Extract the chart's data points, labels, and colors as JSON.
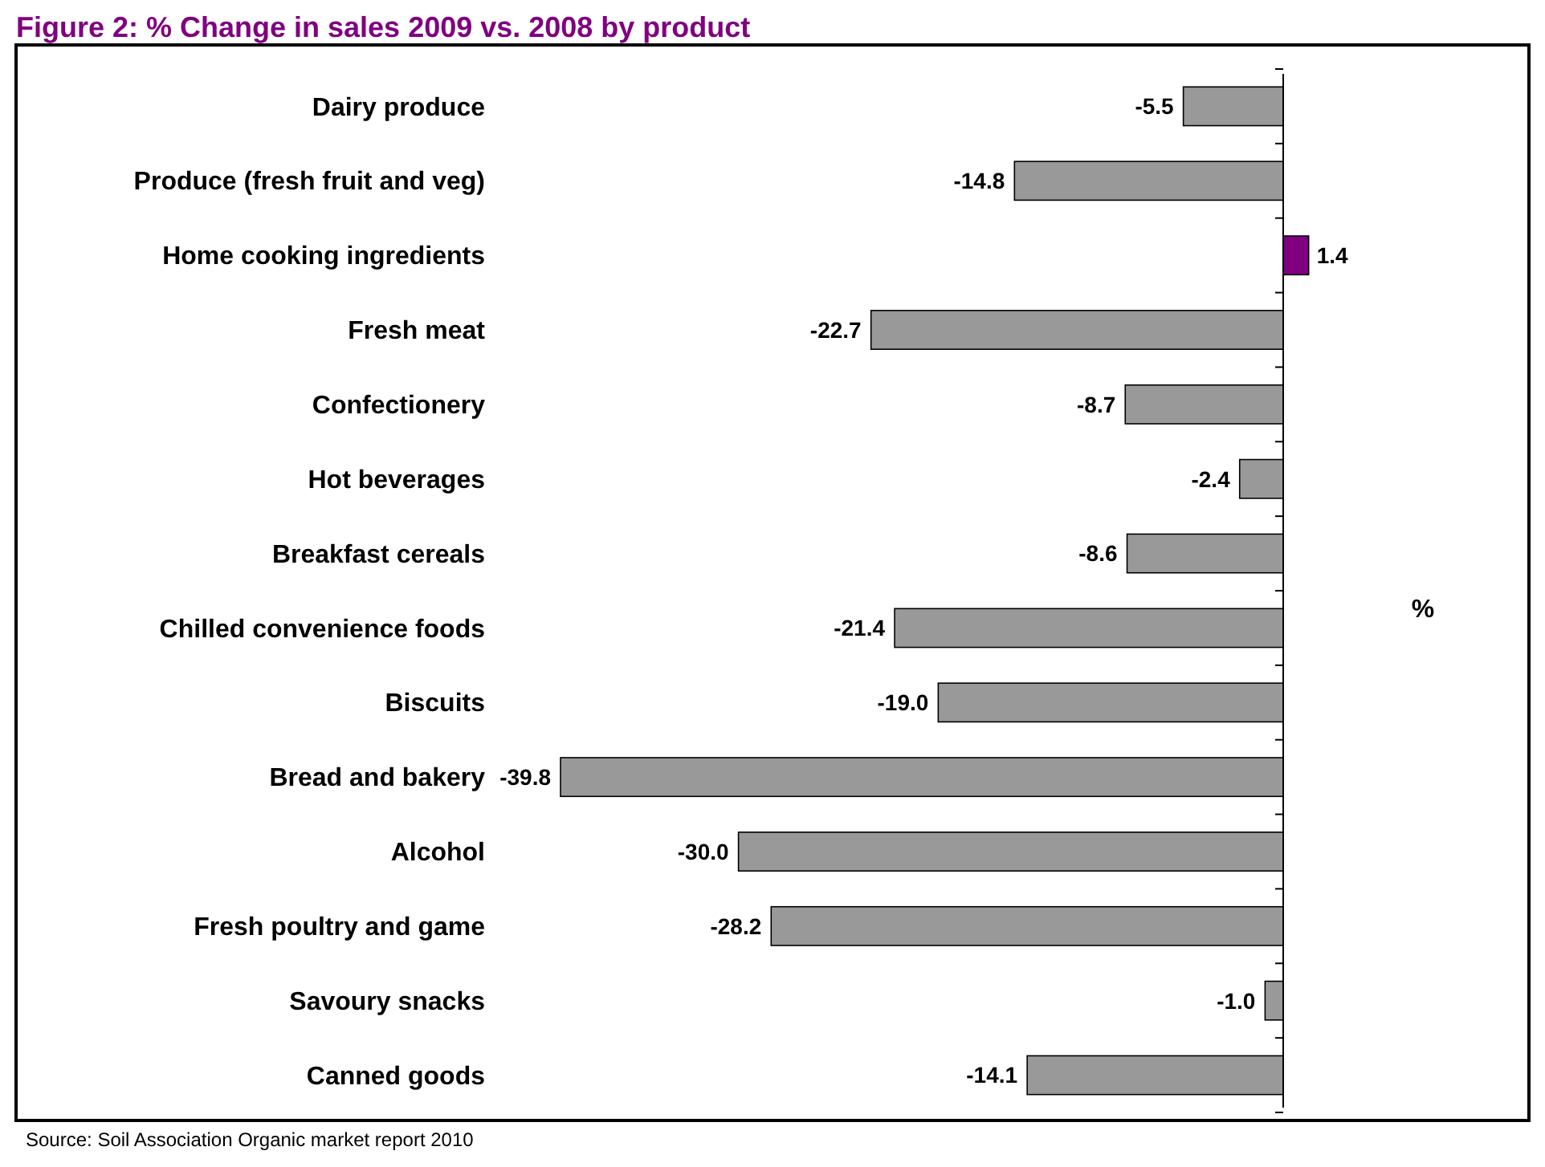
{
  "chart_data": {
    "type": "bar",
    "orientation": "horizontal",
    "title": "Figure 2: % Change in sales 2009 vs. 2008 by product",
    "xlabel": "%",
    "categories": [
      "Dairy produce",
      "Produce (fresh fruit and veg)",
      "Home cooking ingredients",
      "Fresh meat",
      "Confectionery",
      "Hot beverages",
      "Breakfast cereals",
      "Chilled convenience foods",
      "Biscuits",
      "Bread and bakery",
      "Alcohol",
      "Fresh poultry and game",
      "Savoury snacks",
      "Canned goods"
    ],
    "values": [
      -5.5,
      -14.8,
      1.4,
      -22.7,
      -8.7,
      -2.4,
      -8.6,
      -21.4,
      -19.0,
      -39.8,
      -30.0,
      -28.2,
      -1.0,
      -14.1
    ],
    "colors": [
      "#999999",
      "#999999",
      "#800080",
      "#999999",
      "#999999",
      "#999999",
      "#999999",
      "#999999",
      "#999999",
      "#999999",
      "#999999",
      "#999999",
      "#999999",
      "#999999"
    ],
    "value_labels": [
      "-5.5",
      "-14.8",
      "1.4",
      "-22.7",
      "-8.7",
      "-2.4",
      "-8.6",
      "-21.4",
      "-19.0",
      "-39.8",
      "-30.0",
      "-28.2",
      "-1.0",
      "-14.1"
    ],
    "annotations": [
      "Source: Soil Association Organic market report 2010"
    ]
  }
}
